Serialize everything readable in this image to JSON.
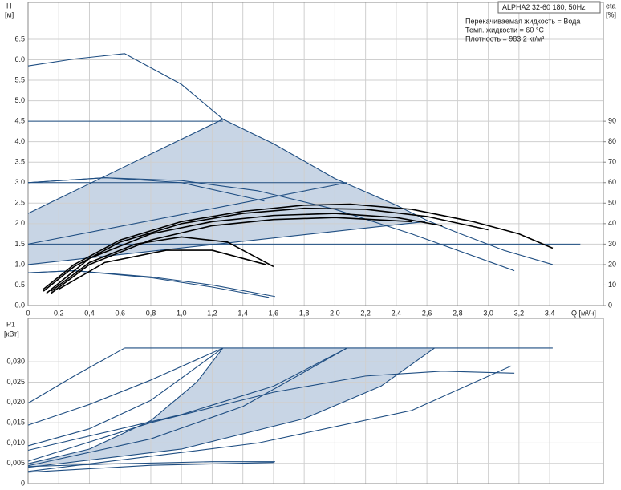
{
  "chart_data": [
    {
      "type": "line",
      "title": "ALPHA2 32-60 180, 50Hz",
      "notes": [
        "Перекачиваемая жидкость = Вода",
        "Темп. жидкости = 60 °C",
        "Плотность = 983.2 кг/м³"
      ],
      "ylabel": [
        "H",
        "[м]"
      ],
      "y2label": [
        "eta",
        "[%]"
      ],
      "xlabel": "Q [м³/ч]",
      "xlim": [
        0,
        3.75
      ],
      "ylim": [
        0,
        7.4
      ],
      "y2lim": [
        0,
        148
      ],
      "grid": true,
      "xticks": [
        0,
        {
          "value": 0.2,
          "label": "0,2"
        },
        {
          "value": 0.4,
          "label": "0,4"
        },
        {
          "value": 0.6,
          "label": "0,6"
        },
        {
          "value": 0.8,
          "label": "0,8"
        },
        {
          "value": 1.0,
          "label": "1,0"
        },
        {
          "value": 1.2,
          "label": "1,2"
        },
        {
          "value": 1.4,
          "label": "1,4"
        },
        {
          "value": 1.6,
          "label": "1,6"
        },
        {
          "value": 1.8,
          "label": "1,8"
        },
        {
          "value": 2.0,
          "label": "2,0"
        },
        {
          "value": 2.2,
          "label": "2,2"
        },
        {
          "value": 2.4,
          "label": "2,4"
        },
        {
          "value": 2.6,
          "label": "2,6"
        },
        {
          "value": 2.8,
          "label": "2,8"
        },
        {
          "value": 3.0,
          "label": "3,0"
        },
        {
          "value": 3.2,
          "label": "3,2"
        },
        {
          "value": 3.4,
          "label": "3,4"
        }
      ],
      "yticks": [
        {
          "value": 0,
          "label": "0.0"
        },
        0.5,
        {
          "value": 1,
          "label": "1.0"
        },
        1.5,
        {
          "value": 2,
          "label": "2.0"
        },
        2.5,
        {
          "value": 3,
          "label": "3.0"
        },
        3.5,
        {
          "value": 4,
          "label": "4.0"
        },
        4.5,
        {
          "value": 5,
          "label": "5.0"
        },
        5.5,
        {
          "value": 6,
          "label": "6.0"
        },
        6.5
      ],
      "y2ticks": [
        0,
        10,
        20,
        30,
        40,
        50,
        60,
        70,
        80,
        90
      ],
      "regions": [
        {
          "color": "#c8d5e5",
          "x": [
            0,
            2.59,
            2.4,
            2.0,
            1.6,
            1.27,
            0
          ],
          "values": [
            1.0,
            2.05,
            2.45,
            3.1,
            3.95,
            4.55,
            2.25
          ]
        }
      ],
      "series": [
        {
          "color": "#1f4e82",
          "x": [
            0,
            0.3,
            0.63,
            1.0,
            1.27,
            1.6,
            2.0,
            2.4,
            2.6,
            2.8,
            3.1,
            3.42
          ],
          "values": [
            5.85,
            6.02,
            6.15,
            5.4,
            4.55,
            3.95,
            3.1,
            2.45,
            2.08,
            1.78,
            1.35,
            1.0
          ]
        },
        {
          "color": "#1f4e82",
          "x": [
            0,
            1.27
          ],
          "values": [
            4.5,
            4.5
          ]
        },
        {
          "color": "#1f4e82",
          "x": [
            0,
            2.08
          ],
          "values": [
            3.0,
            3.0
          ]
        },
        {
          "color": "#1f4e82",
          "x": [
            0,
            3.6
          ],
          "values": [
            1.5,
            1.5
          ]
        },
        {
          "color": "#1f4e82",
          "x": [
            0,
            1.27
          ],
          "values": [
            2.25,
            4.55
          ]
        },
        {
          "color": "#1f4e82",
          "x": [
            0,
            2.08
          ],
          "values": [
            1.5,
            3.0
          ]
        },
        {
          "color": "#1f4e82",
          "x": [
            0,
            2.59
          ],
          "values": [
            1.0,
            2.05
          ]
        },
        {
          "color": "#1f4e82",
          "x": [
            0,
            0.5,
            1.0,
            1.5,
            2.0,
            2.5,
            3.17
          ],
          "values": [
            3.0,
            3.12,
            3.05,
            2.8,
            2.35,
            1.75,
            0.85
          ]
        },
        {
          "color": "#1f4e82",
          "x": [
            0,
            0.5,
            1.0,
            1.54
          ],
          "values": [
            3.0,
            3.12,
            3.0,
            2.55
          ]
        },
        {
          "color": "#1f4e82",
          "x": [
            0,
            0.3,
            0.8,
            1.2,
            1.61
          ],
          "values": [
            0.8,
            0.85,
            0.7,
            0.5,
            0.22
          ]
        },
        {
          "color": "#1f4e82",
          "x": [
            0,
            0.3,
            0.8,
            1.2,
            1.57
          ],
          "values": [
            0.8,
            0.85,
            0.68,
            0.45,
            0.2
          ]
        },
        {
          "color": "#000000",
          "axis": "y2",
          "x": [
            0.1,
            0.3,
            0.6,
            1.0,
            1.4,
            1.8,
            2.1,
            2.5,
            2.9,
            3.2,
            3.42
          ],
          "values": [
            8,
            20,
            32,
            41,
            46,
            49,
            49.5,
            47,
            41,
            35,
            28
          ]
        },
        {
          "color": "#000000",
          "axis": "y2",
          "x": [
            0.1,
            0.3,
            0.6,
            1.0,
            1.4,
            1.8,
            2.2,
            2.6,
            3.0
          ],
          "values": [
            7,
            19,
            31,
            40,
            45,
            47.5,
            47,
            43.5,
            37
          ]
        },
        {
          "color": "#000000",
          "axis": "y2",
          "x": [
            0.12,
            0.4,
            0.8,
            1.2,
            1.6,
            2.0,
            2.4,
            2.7
          ],
          "values": [
            6,
            23,
            35,
            41,
            44,
            45,
            43,
            39
          ]
        },
        {
          "color": "#000000",
          "axis": "y2",
          "x": [
            0.15,
            0.4,
            0.8,
            1.2,
            1.6,
            2.0,
            2.5
          ],
          "values": [
            6,
            20,
            32,
            39,
            42,
            43,
            41
          ]
        },
        {
          "color": "#000000",
          "axis": "y2",
          "x": [
            0.15,
            0.4,
            0.7,
            1.0,
            1.3,
            1.6
          ],
          "values": [
            7,
            21,
            30,
            33.5,
            31,
            19
          ]
        },
        {
          "color": "#000000",
          "axis": "y2",
          "x": [
            0.2,
            0.5,
            0.9,
            1.2,
            1.55
          ],
          "values": [
            8,
            21,
            27,
            27,
            20
          ]
        }
      ]
    },
    {
      "type": "line",
      "ylabel": [
        "P1",
        "[кВт]"
      ],
      "xlim": [
        0,
        3.75
      ],
      "ylim": [
        0,
        0.0407
      ],
      "grid": true,
      "xticks": [
        0,
        0.2,
        0.4,
        0.6,
        0.8,
        1.0,
        1.2,
        1.4,
        1.6,
        1.8,
        2.0,
        2.2,
        2.4,
        2.6,
        2.8,
        3.0,
        3.2,
        3.4
      ],
      "yticks": [
        0,
        {
          "value": 0.005,
          "label": "0,005"
        },
        {
          "value": 0.01,
          "label": "0,010"
        },
        {
          "value": 0.015,
          "label": "0,015"
        },
        {
          "value": 0.02,
          "label": "0,020"
        },
        {
          "value": 0.025,
          "label": "0,025"
        },
        {
          "value": 0.03,
          "label": "0,030"
        }
      ],
      "regions": [
        {
          "color": "#c8d5e5",
          "x": [
            0,
            0.4,
            0.8,
            1.1,
            1.27,
            2.65,
            2.3,
            1.8,
            1.0,
            0
          ],
          "values": [
            0.0049,
            0.0085,
            0.0155,
            0.025,
            0.0334,
            0.0334,
            0.024,
            0.016,
            0.0085,
            0.004
          ]
        }
      ],
      "series": [
        {
          "color": "#1f4e82",
          "x": [
            0.63,
            3.42
          ],
          "values": [
            0.0334,
            0.0334
          ]
        },
        {
          "color": "#1f4e82",
          "x": [
            0,
            0.3,
            0.63
          ],
          "values": [
            0.0198,
            0.0265,
            0.0334
          ]
        },
        {
          "color": "#1f4e82",
          "x": [
            0,
            0.4,
            0.8,
            1.27
          ],
          "values": [
            0.0144,
            0.0195,
            0.0255,
            0.0334
          ]
        },
        {
          "color": "#1f4e82",
          "x": [
            0,
            0.4,
            0.8,
            1.27
          ],
          "values": [
            0.0093,
            0.0135,
            0.0205,
            0.0334
          ]
        },
        {
          "color": "#1f4e82",
          "x": [
            0,
            0.4,
            0.8,
            1.1,
            1.27
          ],
          "values": [
            0.0049,
            0.0085,
            0.0155,
            0.025,
            0.0334
          ]
        },
        {
          "color": "#1f4e82",
          "x": [
            0,
            0.8,
            1.4,
            2.08
          ],
          "values": [
            0.0044,
            0.011,
            0.019,
            0.0334
          ]
        },
        {
          "color": "#1f4e82",
          "x": [
            0,
            1.0,
            1.6,
            2.08
          ],
          "values": [
            0.0082,
            0.017,
            0.024,
            0.0334
          ]
        },
        {
          "color": "#1f4e82",
          "x": [
            0,
            1.0,
            1.8,
            2.3,
            2.65
          ],
          "values": [
            0.004,
            0.0085,
            0.016,
            0.024,
            0.0334
          ]
        },
        {
          "color": "#1f4e82",
          "x": [
            0,
            0.8,
            1.6,
            2.2,
            2.7,
            3.17
          ],
          "values": [
            0.0055,
            0.015,
            0.0225,
            0.0265,
            0.0277,
            0.0272
          ]
        },
        {
          "color": "#1f4e82",
          "x": [
            0,
            1.5,
            2.5,
            3.15
          ],
          "values": [
            0.003,
            0.01,
            0.018,
            0.029
          ]
        },
        {
          "color": "#1f4e82",
          "x": [
            0,
            0.5,
            1.2,
            1.61
          ],
          "values": [
            0.0042,
            0.0048,
            0.0054,
            0.0054
          ]
        },
        {
          "color": "#1f4e82",
          "x": [
            0,
            0.8,
            1.6
          ],
          "values": [
            0.0028,
            0.0045,
            0.0052
          ]
        }
      ]
    }
  ]
}
